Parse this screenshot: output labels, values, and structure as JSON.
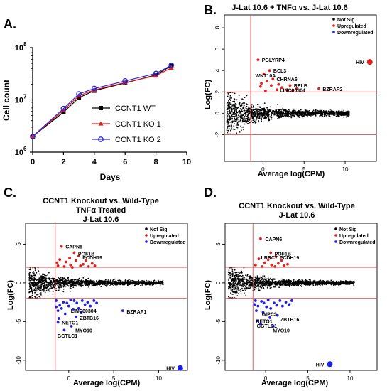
{
  "panel_letters": {
    "a": "A.",
    "b": "B.",
    "c": "C.",
    "d": "D."
  },
  "colors": {
    "notsig": "#000000",
    "up": "#e3211c",
    "down": "#1f1fe6",
    "threshold": "#e34a4a",
    "wt": "#000000",
    "ko1": "#e3211c",
    "ko2": "#2b2bdc"
  },
  "chart_data": [
    {
      "panel": "A",
      "type": "line",
      "xlabel": "Days",
      "ylabel": "Cell count",
      "xlim": [
        0,
        10
      ],
      "xticks": [
        0,
        2,
        4,
        6,
        8,
        10
      ],
      "ylim_log10": [
        6,
        8
      ],
      "yticks": [
        {
          "exp": "6",
          "base": "10"
        },
        {
          "exp": "7",
          "base": "10"
        },
        {
          "exp": "8",
          "base": "10"
        }
      ],
      "yscale": "log",
      "legend_placement": "bottom-right",
      "series": [
        {
          "name": "CCNT1 WT",
          "marker": "square",
          "x": [
            0,
            2,
            3,
            4,
            6,
            8,
            9
          ],
          "y": [
            2000000,
            5800000,
            11000000,
            15000000,
            21000000,
            30000000,
            45000000
          ]
        },
        {
          "name": "CCNT1 KO 1",
          "marker": "triangle",
          "x": [
            0,
            2,
            3,
            4,
            6,
            8,
            9
          ],
          "y": [
            2000000,
            6300000,
            12000000,
            15500000,
            21500000,
            29000000,
            41000000
          ]
        },
        {
          "name": "CCNT1 KO 2",
          "marker": "circle",
          "x": [
            0,
            2,
            3,
            4,
            6,
            8,
            9
          ],
          "y": [
            2000000,
            6800000,
            13000000,
            16500000,
            23000000,
            32000000,
            46000000
          ]
        }
      ]
    },
    {
      "panel": "B",
      "type": "scatter",
      "title": "J-Lat 10.6 + TNFα vs. J-Lat 10.6",
      "xlabel": "Average log(CPM)",
      "ylabel": "Log(FC)",
      "xlim": [
        -4.7,
        13.8
      ],
      "ylim": [
        -4.5,
        9.2
      ],
      "xticks": [
        0,
        5,
        10
      ],
      "yticks": [
        -2,
        0,
        2,
        4,
        6,
        8
      ],
      "vline": -1.5,
      "hlines": [
        2,
        -2
      ],
      "legend": [
        "Not Sig",
        "Upregulated",
        "Downregulated"
      ],
      "legend_placement": "top-right",
      "cloud": {
        "x_min": -4.4,
        "x_max": 10.5,
        "n": 1500,
        "seed": 11
      },
      "up_points": [
        [
          -0.6,
          5.0
        ],
        [
          0.8,
          4.0
        ],
        [
          0.1,
          3.7
        ],
        [
          1.2,
          3.2
        ],
        [
          3.3,
          2.6
        ],
        [
          2.3,
          2.4
        ],
        [
          6.8,
          2.3
        ],
        [
          -0.3,
          2.5
        ],
        [
          0.3,
          2.1
        ],
        [
          1.0,
          2.6
        ],
        [
          1.7,
          2.2
        ],
        [
          2.9,
          2.2
        ],
        [
          4.1,
          2.3
        ],
        [
          0.5,
          3.0
        ],
        [
          1.9,
          2.7
        ],
        [
          -0.2,
          2.8
        ],
        [
          3.6,
          2.1
        ]
      ],
      "down_points": [],
      "highlight": {
        "label": "HIV",
        "x": 13.0,
        "y": 4.8,
        "class": "up"
      },
      "gene_labels": [
        {
          "t": "PGLYRP4",
          "x": -0.4,
          "y": 5.0
        },
        {
          "t": "BCL3",
          "x": 1.0,
          "y": 4.0
        },
        {
          "t": "WNT10A",
          "x": -1.2,
          "y": 3.55
        },
        {
          "t": "CHRNA6",
          "x": 1.4,
          "y": 3.2
        },
        {
          "t": "RELB",
          "x": 3.5,
          "y": 2.6
        },
        {
          "t": "LINC00304",
          "x": 1.8,
          "y": 2.2
        },
        {
          "t": "BZRAP2",
          "x": 7.0,
          "y": 2.3
        }
      ]
    },
    {
      "panel": "C",
      "type": "scatter",
      "title": [
        "CCNT1 Knockout vs. Wild-Type",
        "TNFα Treated",
        "J-Lat 10.6"
      ],
      "xlabel": "Average log(CPM)",
      "ylabel": "Log(FC)",
      "xlim": [
        -4.8,
        13.2
      ],
      "ylim": [
        -11.3,
        7.7
      ],
      "xticks": [
        0,
        5,
        10
      ],
      "yticks": [
        -10,
        -5,
        0,
        5
      ],
      "vline": -1.5,
      "hlines": [
        2,
        -2
      ],
      "legend": [
        "Not Sig",
        "Upregulated",
        "Downregulated"
      ],
      "legend_placement": "top-right",
      "cloud": {
        "x_min": -4.4,
        "x_max": 10.5,
        "n": 1500,
        "seed": 23
      },
      "up_points": [
        [
          -0.8,
          4.7
        ],
        [
          0.6,
          3.9
        ],
        [
          1.1,
          3.5
        ],
        [
          -1.2,
          2.2
        ],
        [
          -0.3,
          2.7
        ],
        [
          0.2,
          2.3
        ],
        [
          1.6,
          2.4
        ],
        [
          2.2,
          2.1
        ],
        [
          -1.0,
          3.0
        ],
        [
          0.8,
          2.9
        ],
        [
          1.9,
          2.9
        ],
        [
          2.6,
          2.5
        ],
        [
          -0.5,
          2.1
        ],
        [
          1.3,
          2.2
        ],
        [
          0.1,
          3.2
        ],
        [
          2.9,
          2.2
        ],
        [
          -1.3,
          2.6
        ],
        [
          0.4,
          2.0
        ]
      ],
      "down_points": [
        [
          -1.4,
          -2.3
        ],
        [
          -0.6,
          -2.5
        ],
        [
          0.2,
          -2.2
        ],
        [
          0.9,
          -2.6
        ],
        [
          1.5,
          -2.3
        ],
        [
          2.1,
          -2.5
        ],
        [
          2.8,
          -2.3
        ],
        [
          -1.0,
          -2.9
        ],
        [
          0.0,
          -3.0
        ],
        [
          1.1,
          -3.3
        ],
        [
          -1.2,
          -3.6
        ],
        [
          0.5,
          -3.4
        ],
        [
          -0.4,
          -4.0
        ],
        [
          0.8,
          -4.4
        ],
        [
          -1.1,
          -4.6
        ],
        [
          -1.2,
          -5.1
        ],
        [
          0.3,
          -5.6
        ],
        [
          -0.5,
          -6.1
        ],
        [
          1.8,
          -2.8
        ],
        [
          -0.8,
          -3.3
        ],
        [
          2.4,
          -3.0
        ],
        [
          -0.2,
          -2.6
        ],
        [
          1.4,
          -3.8
        ],
        [
          3.1,
          -2.6
        ],
        [
          6.0,
          -3.6
        ],
        [
          0.6,
          -2.3
        ],
        [
          -1.4,
          -3.1
        ]
      ],
      "highlight": {
        "label": "HIV",
        "x": 12.4,
        "y": -11.0,
        "class": "down"
      },
      "gene_labels": [
        {
          "t": "CAPN6",
          "x": -0.6,
          "y": 4.7
        },
        {
          "t": "POF1B",
          "x": 0.8,
          "y": 3.8
        },
        {
          "t": "PCDH19",
          "x": 1.3,
          "y": 3.3
        },
        {
          "t": "LINC00304",
          "x": 0.0,
          "y": -3.6
        },
        {
          "t": "BZRAP1",
          "x": 6.2,
          "y": -3.7
        },
        {
          "t": "ZBTB16",
          "x": 1.0,
          "y": -4.5
        },
        {
          "t": "NETO1",
          "x": -1.0,
          "y": -5.1
        },
        {
          "t": "MYO10",
          "x": 0.5,
          "y": -6.1
        },
        {
          "t": "GGTLC1",
          "x": -1.5,
          "y": -6.8
        }
      ]
    },
    {
      "panel": "D",
      "type": "scatter",
      "title": [
        "CCNT1 Knockout vs. Wild-Type",
        "J-Lat 10.6"
      ],
      "xlabel": "Average log(CPM)",
      "ylabel": "Log(FC)",
      "xlim": [
        -4.8,
        13.2
      ],
      "ylim": [
        -11.3,
        7.7
      ],
      "xticks": [
        0,
        5,
        10
      ],
      "yticks": [
        -10,
        -5,
        0,
        5
      ],
      "vline": -1.5,
      "hlines": [
        2,
        -2
      ],
      "legend": [
        "Not Sig",
        "Upregulated",
        "Downregulated"
      ],
      "legend_placement": "top-right",
      "cloud": {
        "x_min": -4.4,
        "x_max": 10.5,
        "n": 1500,
        "seed": 37
      },
      "up_points": [
        [
          -0.6,
          5.7
        ],
        [
          0.6,
          3.9
        ],
        [
          1.2,
          3.4
        ],
        [
          -0.8,
          3.1
        ],
        [
          -0.1,
          2.6
        ],
        [
          0.7,
          2.3
        ],
        [
          1.5,
          2.5
        ],
        [
          2.2,
          2.2
        ],
        [
          -1.2,
          2.3
        ],
        [
          0.3,
          3.0
        ],
        [
          1.9,
          2.9
        ],
        [
          2.6,
          2.4
        ],
        [
          -0.4,
          2.1
        ],
        [
          1.1,
          2.1
        ]
      ],
      "down_points": [
        [
          -1.2,
          -2.3
        ],
        [
          -0.5,
          -2.4
        ],
        [
          0.3,
          -2.2
        ],
        [
          1.0,
          -2.6
        ],
        [
          1.7,
          -2.3
        ],
        [
          2.4,
          -2.5
        ],
        [
          3.1,
          -2.3
        ],
        [
          -0.9,
          -3.0
        ],
        [
          0.1,
          -3.1
        ],
        [
          -1.1,
          -3.6
        ],
        [
          0.6,
          -3.3
        ],
        [
          -0.3,
          -3.8
        ],
        [
          1.4,
          -4.2
        ],
        [
          -1.0,
          -4.9
        ],
        [
          -0.6,
          -5.3
        ],
        [
          0.9,
          -5.6
        ],
        [
          2.0,
          -3.0
        ],
        [
          -1.3,
          -2.8
        ],
        [
          1.3,
          -2.9
        ],
        [
          2.8,
          -2.8
        ],
        [
          -0.2,
          -2.6
        ],
        [
          0.5,
          -4.5
        ]
      ],
      "highlight": {
        "label": "HIV",
        "x": 7.6,
        "y": -10.5,
        "class": "down"
      },
      "gene_labels": [
        {
          "t": "CAPN6",
          "x": -0.3,
          "y": 5.7
        },
        {
          "t": "POF1B",
          "x": 0.8,
          "y": 3.8
        },
        {
          "t": "LRRC7",
          "x": -0.8,
          "y": 3.3
        },
        {
          "t": "PCDH19",
          "x": 1.4,
          "y": 3.3
        },
        {
          "t": "GIPC3",
          "x": -0.7,
          "y": -4.0
        },
        {
          "t": "ZBTB16",
          "x": 1.5,
          "y": -4.7
        },
        {
          "t": "NETO1",
          "x": -1.4,
          "y": -4.9
        },
        {
          "t": "GGTLC1",
          "x": -1.3,
          "y": -5.5
        },
        {
          "t": "MYO10",
          "x": 0.6,
          "y": -6.1
        }
      ]
    }
  ]
}
